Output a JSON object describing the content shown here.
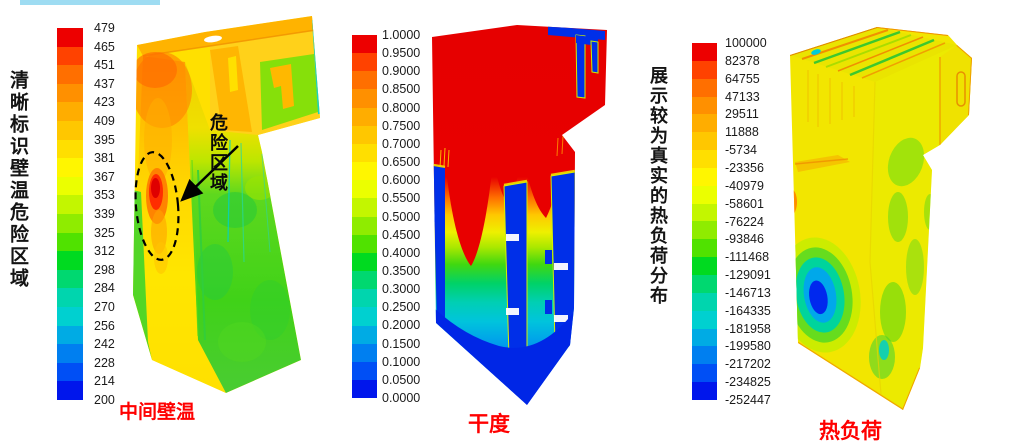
{
  "accent": {
    "top_bar_color": "#9EDCF2"
  },
  "caption_color": "#FF0000",
  "legend_band_colors": [
    "#ED0000",
    "#FF4200",
    "#FF6F00",
    "#FF9000",
    "#FFAD00",
    "#FFC700",
    "#FFDF00",
    "#FFF600",
    "#EBFF00",
    "#C3F600",
    "#8FEC00",
    "#50E200",
    "#00DA20",
    "#00D870",
    "#00D5AE",
    "#00D0D0",
    "#00ABE4",
    "#007FF0",
    "#004FF5",
    "#0016EC"
  ],
  "panels": [
    {
      "id": "wall-temperature",
      "side_title": "清晰标识壁温危险区域",
      "caption": "中间壁温",
      "annotation_label": "危险区域",
      "legend_ticks": [
        "479",
        "465",
        "451",
        "437",
        "423",
        "409",
        "395",
        "381",
        "367",
        "353",
        "339",
        "325",
        "312",
        "298",
        "284",
        "270",
        "256",
        "242",
        "228",
        "214",
        "200"
      ]
    },
    {
      "id": "dryness",
      "caption": "干度",
      "legend_ticks": [
        "1.0000",
        "0.9500",
        "0.9000",
        "0.8500",
        "0.8000",
        "0.7500",
        "0.7000",
        "0.6500",
        "0.6000",
        "0.5500",
        "0.5000",
        "0.4500",
        "0.4000",
        "0.3500",
        "0.3000",
        "0.2500",
        "0.2000",
        "0.1500",
        "0.1000",
        "0.0500",
        "0.0000"
      ]
    },
    {
      "id": "heat-load",
      "side_title": "展示较为真实的热负荷分布",
      "caption": "热负荷",
      "legend_ticks": [
        "100000",
        "82378",
        "64755",
        "47133",
        "29511",
        "11888",
        "-5734",
        "-23356",
        "-40979",
        "-58601",
        "-76224",
        "-93846",
        "-111468",
        "-129091",
        "-146713",
        "-164335",
        "-181958",
        "-199580",
        "-217202",
        "-234825",
        "-252447"
      ]
    }
  ],
  "chart_data": [
    {
      "type": "heatmap",
      "title": "中间壁温",
      "colorbar_ticks": [
        479,
        465,
        451,
        437,
        423,
        409,
        395,
        381,
        367,
        353,
        339,
        325,
        312,
        298,
        284,
        270,
        256,
        242,
        228,
        214,
        200
      ],
      "range": [
        200,
        479
      ],
      "legend_position": "left",
      "colormap": "rainbow (red=max, blue=min)",
      "description": "3D boiler wall-temperature contour; left wall mostly yellow-orange with a red hot spot circled by a dashed ellipse labeled 危险区域; right wall green."
    },
    {
      "type": "heatmap",
      "title": "干度",
      "colorbar_ticks": [
        1.0,
        0.95,
        0.9,
        0.85,
        0.8,
        0.75,
        0.7,
        0.65,
        0.6,
        0.55,
        0.5,
        0.45,
        0.4,
        0.35,
        0.3,
        0.25,
        0.2,
        0.15,
        0.1,
        0.05,
        0.0
      ],
      "range": [
        0,
        1
      ],
      "legend_position": "left",
      "colormap": "rainbow (red=max, blue=min)",
      "description": "3D boiler steam-quality (dryness) contour; upper half red (dryness 1.0), V-shaped rainbow transition downward to blue hopper; blue tube columns."
    },
    {
      "type": "heatmap",
      "title": "热负荷",
      "colorbar_ticks": [
        100000,
        82378,
        64755,
        47133,
        29511,
        11888,
        -5734,
        -23356,
        -40979,
        -58601,
        -76224,
        -93846,
        -111468,
        -129091,
        -146713,
        -164335,
        -181958,
        -199580,
        -217202,
        -234825,
        -252447
      ],
      "range": [
        -252447,
        100000
      ],
      "legend_position": "left",
      "colormap": "rainbow (red=max, blue=min)",
      "description": "3D boiler heat-load contour; mostly yellow with green patches and a concentric blue/cyan minimum blob on the lower-left wall."
    }
  ]
}
